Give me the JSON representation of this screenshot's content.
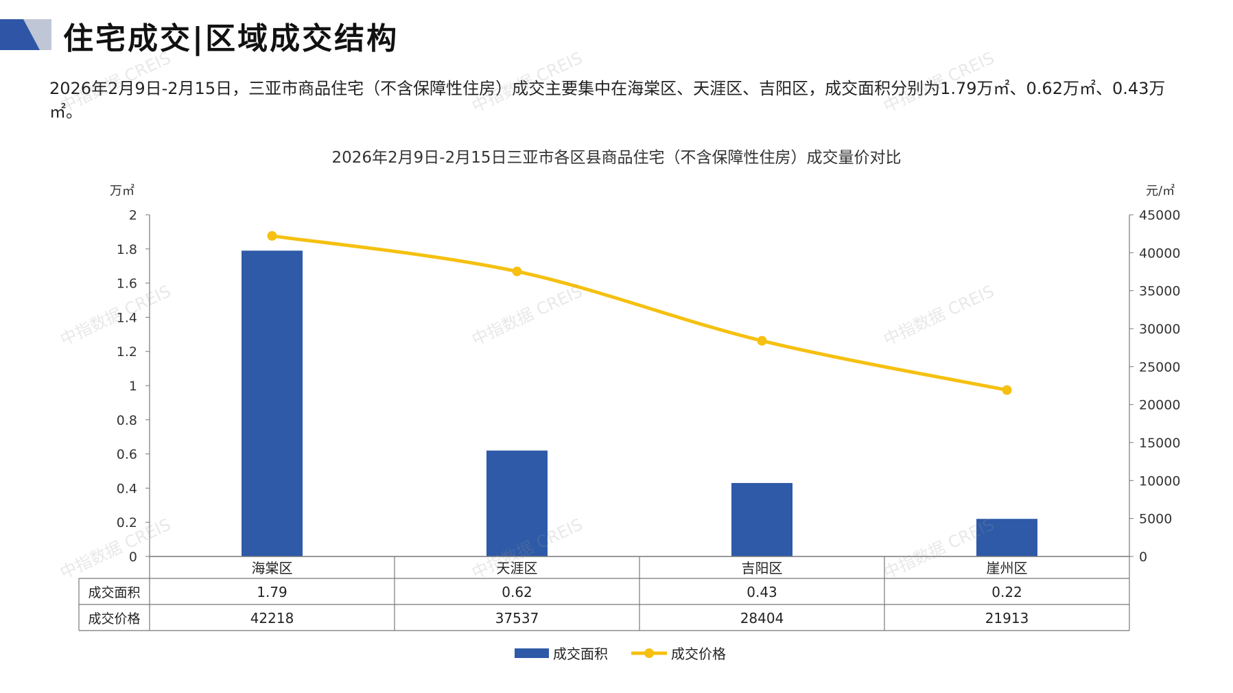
{
  "header": {
    "title": "住宅成交|区域成交结构"
  },
  "summary": "2026年2月9日-2月15日，三亚市商品住宅（不含保障性住房）成交主要集中在海棠区、天涯区、吉阳区，成交面积分别为1.79万㎡、0.62万㎡、0.43万㎡。",
  "watermark": "中指数据 CREIS",
  "colors": {
    "bar": "#2E5AA8",
    "line": "#F5C010",
    "logo_dark": "#2F56A6",
    "logo_light": "#BFC6D6"
  },
  "chart_data": {
    "type": "bar",
    "title": "2026年2月9日-2月15日三亚市各区县商品住宅（不含保障性住房）成交量价对比",
    "categories": [
      "海棠区",
      "天涯区",
      "吉阳区",
      "崖州区"
    ],
    "series": [
      {
        "name": "成交面积",
        "type": "bar",
        "axis": "left",
        "values": [
          1.79,
          0.62,
          0.43,
          0.22
        ],
        "labels": [
          "1.79",
          "0.62",
          "0.43",
          "0.22"
        ]
      },
      {
        "name": "成交价格",
        "type": "line",
        "axis": "right",
        "values": [
          42218,
          37537,
          28404,
          21913
        ],
        "labels": [
          "42218",
          "37537",
          "28404",
          "21913"
        ]
      }
    ],
    "y_left": {
      "unit": "万㎡",
      "range": [
        0,
        2
      ],
      "ticks": [
        "0",
        "0.2",
        "0.4",
        "0.6",
        "0.8",
        "1",
        "1.2",
        "1.4",
        "1.6",
        "1.8",
        "2"
      ]
    },
    "y_right": {
      "unit": "元/㎡",
      "range": [
        0,
        45000
      ],
      "ticks": [
        "0",
        "5000",
        "10000",
        "15000",
        "20000",
        "25000",
        "30000",
        "35000",
        "40000",
        "45000"
      ]
    },
    "data_table": true,
    "legend": "bottom",
    "grid": false
  }
}
